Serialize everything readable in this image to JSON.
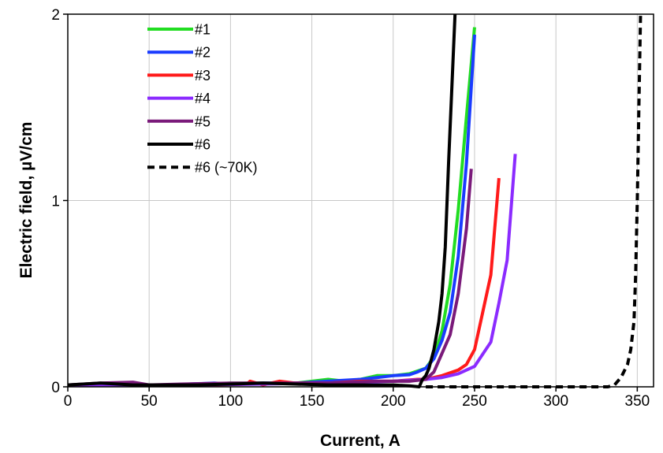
{
  "chart_data": {
    "type": "line",
    "xlabel": "Current, A",
    "ylabel": "Electric field, µV/cm",
    "xlim": [
      0,
      360
    ],
    "ylim": [
      0,
      2
    ],
    "xticks": [
      0,
      50,
      100,
      150,
      200,
      250,
      300,
      350
    ],
    "yticks": [
      0,
      1,
      2
    ],
    "grid": true,
    "legend_position": "top-left",
    "series": [
      {
        "name": "#1",
        "color": "#22dd22",
        "dash": "solid",
        "x": [
          0,
          20,
          40,
          60,
          80,
          100,
          120,
          140,
          160,
          170,
          180,
          190,
          200,
          210,
          220,
          225,
          230,
          235,
          240,
          245,
          250
        ],
        "y": [
          0.01,
          0.015,
          0.01,
          0.01,
          0.01,
          0.02,
          0.02,
          0.02,
          0.04,
          0.03,
          0.04,
          0.06,
          0.06,
          0.07,
          0.1,
          0.16,
          0.3,
          0.55,
          0.95,
          1.45,
          1.93
        ]
      },
      {
        "name": "#2",
        "color": "#1a3cff",
        "dash": "solid",
        "x": [
          0,
          20,
          40,
          60,
          90,
          100,
          120,
          140,
          160,
          180,
          190,
          200,
          210,
          215,
          220,
          225,
          230,
          235,
          240,
          245,
          250
        ],
        "y": [
          0.01,
          0.01,
          0.01,
          0.01,
          0.02,
          0.015,
          0.02,
          0.02,
          0.03,
          0.04,
          0.05,
          0.06,
          0.065,
          0.08,
          0.1,
          0.15,
          0.25,
          0.4,
          0.7,
          1.2,
          1.89
        ]
      },
      {
        "name": "#3",
        "color": "#ff1a1a",
        "dash": "solid",
        "x": [
          0,
          30,
          60,
          90,
          110,
          112,
          120,
          130,
          140,
          150,
          160,
          180,
          200,
          215,
          220,
          230,
          240,
          245,
          250,
          255,
          260,
          265
        ],
        "y": [
          0.01,
          0.01,
          0.01,
          0.01,
          0.015,
          0.03,
          0.01,
          0.03,
          0.02,
          0.02,
          0.02,
          0.03,
          0.03,
          0.04,
          0.04,
          0.06,
          0.09,
          0.12,
          0.2,
          0.4,
          0.6,
          1.12
        ]
      },
      {
        "name": "#4",
        "color": "#8b2bff",
        "dash": "solid",
        "x": [
          0,
          40,
          80,
          120,
          150,
          160,
          180,
          200,
          220,
          230,
          240,
          250,
          260,
          265,
          270,
          275
        ],
        "y": [
          0.01,
          0.01,
          0.01,
          0.015,
          0.02,
          0.02,
          0.025,
          0.03,
          0.04,
          0.05,
          0.07,
          0.11,
          0.24,
          0.45,
          0.68,
          1.25
        ]
      },
      {
        "name": "#5",
        "color": "#7a1a7a",
        "dash": "solid",
        "x": [
          0,
          20,
          40,
          50,
          70,
          100,
          130,
          160,
          190,
          210,
          220,
          225,
          230,
          235,
          240,
          245,
          248
        ],
        "y": [
          0.01,
          0.02,
          0.025,
          0.01,
          0.015,
          0.02,
          0.02,
          0.02,
          0.03,
          0.03,
          0.04,
          0.08,
          0.18,
          0.28,
          0.5,
          0.85,
          1.17
        ]
      },
      {
        "name": "#6",
        "color": "#000000",
        "dash": "solid",
        "x": [
          0,
          20,
          40,
          60,
          80,
          100,
          120,
          140,
          160,
          180,
          200,
          210,
          216,
          218,
          220,
          222,
          225,
          228,
          230,
          232,
          234,
          236,
          238
        ],
        "y": [
          0.01,
          0.02,
          0.01,
          0.01,
          0.01,
          0.015,
          0.02,
          0.015,
          0.01,
          0.01,
          0.01,
          0.005,
          0.0,
          0.04,
          0.06,
          0.1,
          0.2,
          0.35,
          0.5,
          0.75,
          1.2,
          1.6,
          2.0
        ]
      },
      {
        "name": "#6 (~70K)",
        "color": "#000000",
        "dash": "dashed",
        "x": [
          220,
          240,
          260,
          280,
          300,
          320,
          332,
          336,
          340,
          344,
          346,
          348,
          349,
          350,
          351,
          352
        ],
        "y": [
          0.0,
          0.0,
          0.0,
          0.0,
          0.0,
          0.0,
          0.0,
          0.01,
          0.05,
          0.12,
          0.2,
          0.35,
          0.6,
          1.0,
          1.5,
          2.0
        ]
      }
    ]
  }
}
